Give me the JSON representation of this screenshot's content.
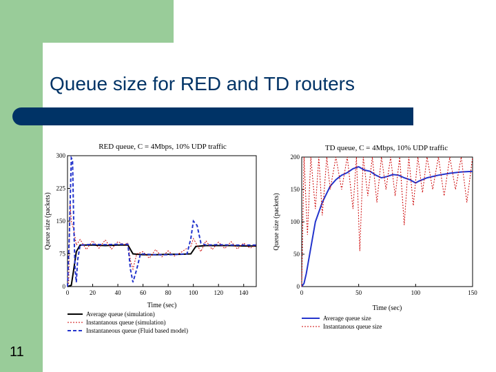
{
  "slide": {
    "title": "Queue size for RED and TD routers",
    "number": "11",
    "colors": {
      "green": "#99cc99",
      "navy": "#003366"
    }
  },
  "chart_data": [
    {
      "type": "line",
      "title": "RED queue, C = 4Mbps, 10% UDP traffic",
      "xlabel": "Time (sec)",
      "ylabel": "Queue size (packets)",
      "xlim": [
        0,
        150
      ],
      "ylim": [
        0,
        300
      ],
      "x_ticks": [
        "0",
        "20",
        "40",
        "60",
        "80",
        "100",
        "120",
        "140"
      ],
      "y_ticks": [
        "0",
        "75",
        "150",
        "225",
        "300"
      ],
      "legend_position": "bottom",
      "series": [
        {
          "name": "Average queue (simulation)",
          "color": "#000000",
          "style": "solid",
          "points": [
            [
              0,
              0
            ],
            [
              3,
              3
            ],
            [
              5,
              40
            ],
            [
              7,
              80
            ],
            [
              10,
              95
            ],
            [
              20,
              95
            ],
            [
              30,
              94
            ],
            [
              40,
              95
            ],
            [
              48,
              95
            ],
            [
              52,
              75
            ],
            [
              60,
              73
            ],
            [
              70,
              73
            ],
            [
              80,
              74
            ],
            [
              90,
              74
            ],
            [
              98,
              75
            ],
            [
              102,
              92
            ],
            [
              110,
              94
            ],
            [
              120,
              94
            ],
            [
              130,
              94
            ],
            [
              140,
              93
            ],
            [
              150,
              93
            ]
          ]
        },
        {
          "name": "Instantanous queue  (simulation)",
          "color": "#cc0000",
          "style": "dotted",
          "points": [
            [
              0,
              0
            ],
            [
              1,
              10
            ],
            [
              2,
              195
            ],
            [
              3,
              150
            ],
            [
              5,
              130
            ],
            [
              7,
              95
            ],
            [
              10,
              108
            ],
            [
              15,
              85
            ],
            [
              20,
              105
            ],
            [
              25,
              88
            ],
            [
              30,
              107
            ],
            [
              35,
              86
            ],
            [
              40,
              103
            ],
            [
              45,
              96
            ],
            [
              48,
              100
            ],
            [
              50,
              60
            ],
            [
              52,
              40
            ],
            [
              55,
              75
            ],
            [
              60,
              80
            ],
            [
              65,
              65
            ],
            [
              70,
              85
            ],
            [
              75,
              68
            ],
            [
              80,
              82
            ],
            [
              85,
              70
            ],
            [
              90,
              78
            ],
            [
              95,
              88
            ],
            [
              98,
              92
            ],
            [
              100,
              110
            ],
            [
              103,
              95
            ],
            [
              106,
              80
            ],
            [
              110,
              105
            ],
            [
              115,
              85
            ],
            [
              120,
              102
            ],
            [
              125,
              87
            ],
            [
              130,
              103
            ],
            [
              135,
              86
            ],
            [
              140,
              100
            ],
            [
              145,
              88
            ],
            [
              150,
              95
            ]
          ]
        },
        {
          "name": "Instantaneous queue (Fluid based model)",
          "color": "#2233cc",
          "style": "dashed",
          "points": [
            [
              0,
              0
            ],
            [
              1.5,
              120
            ],
            [
              3,
              295
            ],
            [
              4,
              290
            ],
            [
              5,
              140
            ],
            [
              6,
              40
            ],
            [
              7,
              10
            ],
            [
              8,
              60
            ],
            [
              10,
              95
            ],
            [
              20,
              97
            ],
            [
              30,
              96
            ],
            [
              40,
              97
            ],
            [
              48,
              97
            ],
            [
              50,
              40
            ],
            [
              52,
              10
            ],
            [
              55,
              40
            ],
            [
              58,
              75
            ],
            [
              70,
              73
            ],
            [
              80,
              73
            ],
            [
              95,
              75
            ],
            [
              98,
              110
            ],
            [
              100,
              150
            ],
            [
              103,
              140
            ],
            [
              106,
              100
            ],
            [
              110,
              95
            ],
            [
              120,
              96
            ],
            [
              130,
              95
            ],
            [
              140,
              95
            ],
            [
              150,
              95
            ]
          ]
        }
      ]
    },
    {
      "type": "line",
      "title": "TD queue, C = 4Mbps, 10% UDP traffic",
      "xlabel": "Time (sec)",
      "ylabel": "Queue size (packets)",
      "xlim": [
        0,
        150
      ],
      "ylim": [
        0,
        200
      ],
      "x_ticks": [
        "0",
        "50",
        "100",
        "150"
      ],
      "y_ticks": [
        "0",
        "50",
        "100",
        "150",
        "200"
      ],
      "legend_position": "bottom",
      "series": [
        {
          "name": "Average queue size",
          "color": "#2233cc",
          "style": "solid",
          "points": [
            [
              0,
              0
            ],
            [
              2,
              5
            ],
            [
              4,
              20
            ],
            [
              8,
              60
            ],
            [
              12,
              100
            ],
            [
              18,
              130
            ],
            [
              25,
              155
            ],
            [
              30,
              165
            ],
            [
              35,
              172
            ],
            [
              40,
              176
            ],
            [
              45,
              182
            ],
            [
              50,
              185
            ],
            [
              55,
              180
            ],
            [
              60,
              178
            ],
            [
              65,
              172
            ],
            [
              70,
              168
            ],
            [
              75,
              170
            ],
            [
              80,
              173
            ],
            [
              85,
              172
            ],
            [
              90,
              168
            ],
            [
              95,
              165
            ],
            [
              100,
              160
            ],
            [
              103,
              163
            ],
            [
              110,
              168
            ],
            [
              120,
              172
            ],
            [
              130,
              175
            ],
            [
              140,
              177
            ],
            [
              150,
              178
            ]
          ]
        },
        {
          "name": "Instantanous queue  size",
          "color": "#cc0000",
          "style": "dotted",
          "points": [
            [
              0,
              0
            ],
            [
              2,
              200
            ],
            [
              5,
              80
            ],
            [
              8,
              200
            ],
            [
              12,
              120
            ],
            [
              15,
              200
            ],
            [
              18,
              110
            ],
            [
              22,
              200
            ],
            [
              25,
              150
            ],
            [
              30,
              200
            ],
            [
              35,
              150
            ],
            [
              40,
              200
            ],
            [
              45,
              120
            ],
            [
              48,
              200
            ],
            [
              51,
              55
            ],
            [
              54,
              200
            ],
            [
              58,
              140
            ],
            [
              62,
              200
            ],
            [
              66,
              130
            ],
            [
              70,
              200
            ],
            [
              74,
              150
            ],
            [
              78,
              200
            ],
            [
              82,
              140
            ],
            [
              86,
              200
            ],
            [
              90,
              95
            ],
            [
              94,
              200
            ],
            [
              98,
              125
            ],
            [
              102,
              200
            ],
            [
              106,
              145
            ],
            [
              110,
              200
            ],
            [
              115,
              150
            ],
            [
              120,
              200
            ],
            [
              125,
              140
            ],
            [
              130,
              200
            ],
            [
              135,
              150
            ],
            [
              140,
              200
            ],
            [
              145,
              130
            ],
            [
              150,
              200
            ]
          ]
        }
      ]
    }
  ]
}
